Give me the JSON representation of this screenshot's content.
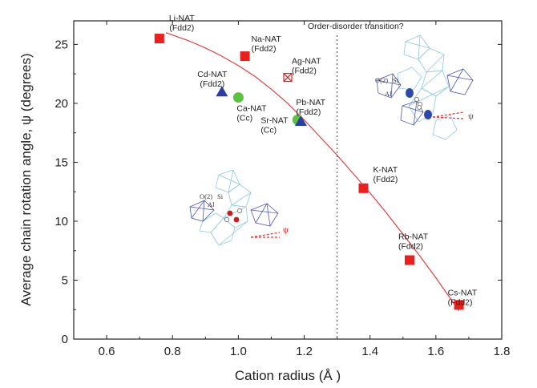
{
  "chart_data": {
    "type": "scatter",
    "xlabel": "Cation radius (Å )",
    "ylabel": "Average chain rotation angle, ψ (degrees)",
    "xlim": [
      0.5,
      1.8
    ],
    "ylim": [
      0,
      27
    ],
    "xticks": [
      "0.6",
      "0.8",
      "1.0",
      "1.2",
      "1.4",
      "1.6",
      "1.8"
    ],
    "yticks": [
      "0",
      "5",
      "10",
      "15",
      "20",
      "25"
    ],
    "annotation": "Order-disorder transition?",
    "transition_x": 1.3,
    "points": [
      {
        "label": "Li-NAT",
        "sym": "(Fdd2)",
        "x": 0.76,
        "y": 25.5,
        "marker": "square",
        "color": "#e82020"
      },
      {
        "label": "Na-NAT",
        "sym": "(Fdd2)",
        "x": 1.02,
        "y": 24.0,
        "marker": "square",
        "color": "#e82020"
      },
      {
        "label": "Ag-NAT",
        "sym": "(Fdd2)",
        "x": 1.15,
        "y": 22.2,
        "marker": "crossed-square",
        "color": "#e82020"
      },
      {
        "label": "Cd-NAT",
        "sym": "(Fdd2)",
        "x": 0.95,
        "y": 21.0,
        "marker": "triangle",
        "color": "#2a3ea0"
      },
      {
        "label": "Ca-NAT",
        "sym": "(Cc)",
        "x": 1.0,
        "y": 20.5,
        "marker": "circle",
        "color": "#5cc040"
      },
      {
        "label": "Sr-NAT",
        "sym": "(Cc)",
        "x": 1.18,
        "y": 18.6,
        "marker": "circle",
        "color": "#5cc040"
      },
      {
        "label": "Pb-NAT",
        "sym": "(Fdd2)",
        "x": 1.19,
        "y": 18.5,
        "marker": "triangle",
        "color": "#2a3ea0"
      },
      {
        "label": "K-NAT",
        "sym": "(Fdd2)",
        "x": 1.38,
        "y": 12.8,
        "marker": "square",
        "color": "#e82020"
      },
      {
        "label": "Rb-NAT",
        "sym": "(Fdd2)",
        "x": 1.52,
        "y": 6.7,
        "marker": "square",
        "color": "#e82020"
      },
      {
        "label": "Cs-NAT",
        "sym": "(Fdd2)",
        "x": 1.67,
        "y": 2.9,
        "marker": "square",
        "color": "#e82020"
      }
    ],
    "fit_curve": {
      "color": "#e04040",
      "x": [
        0.78,
        0.85,
        0.9,
        0.95,
        1.0,
        1.05,
        1.1,
        1.15,
        1.2,
        1.25,
        1.3,
        1.35,
        1.4,
        1.45,
        1.5,
        1.55,
        1.6,
        1.65,
        1.67
      ],
      "y": [
        26.0,
        25.3,
        24.7,
        24.0,
        23.2,
        22.3,
        21.2,
        20.0,
        18.6,
        17.1,
        15.6,
        14.0,
        12.4,
        10.7,
        8.9,
        7.1,
        5.2,
        3.2,
        2.4
      ]
    }
  },
  "insets": {
    "left": {
      "o2": "O(2)",
      "si": "Si",
      "al": "Al",
      "psi": "ψ"
    },
    "right": {
      "o2": "O(2)",
      "si": "Si",
      "al": "Al",
      "psi": "ψ"
    }
  }
}
